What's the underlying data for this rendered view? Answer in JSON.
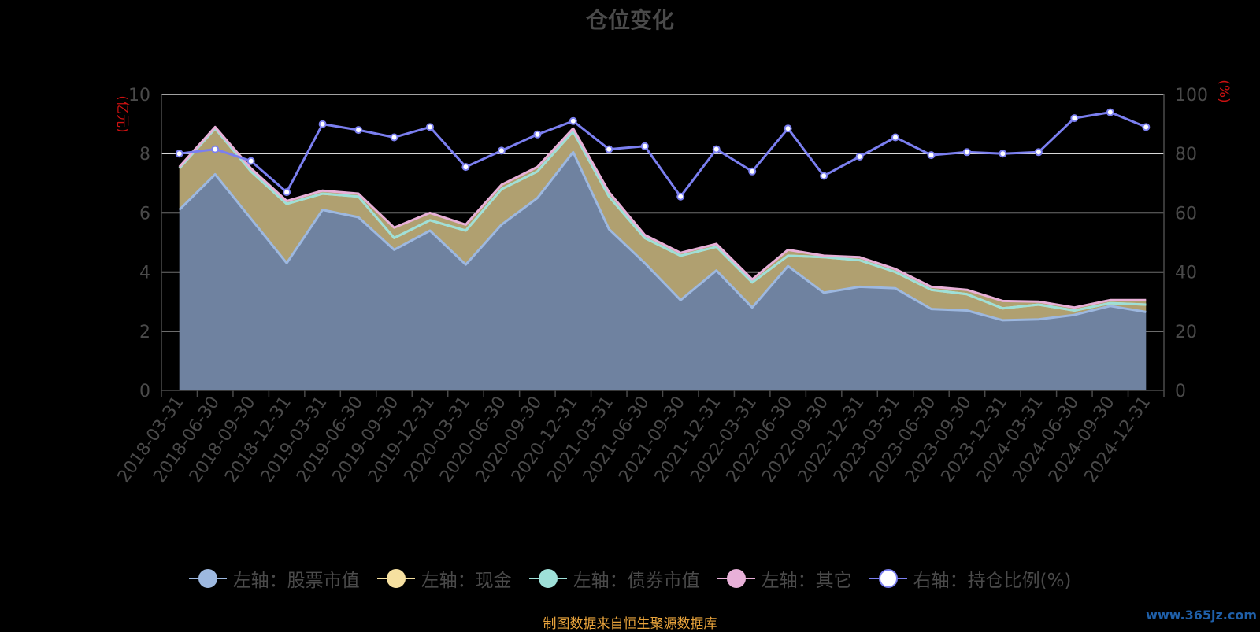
{
  "chart_data": {
    "type": "area",
    "title": "仓位变化",
    "left_axis_unit": "(亿元)",
    "right_axis_unit": "(%)",
    "left_ylim": [
      0,
      10
    ],
    "right_ylim": [
      0,
      100
    ],
    "left_ticks": [
      "0",
      "2",
      "4",
      "6",
      "8",
      "10"
    ],
    "right_ticks": [
      "0",
      "20",
      "40",
      "60",
      "80",
      "100"
    ],
    "grid": true,
    "legend_position": "bottom",
    "categories": [
      "2018-03-31",
      "2018-06-30",
      "2018-09-30",
      "2018-12-31",
      "2019-03-31",
      "2019-06-30",
      "2019-09-30",
      "2019-12-31",
      "2020-03-31",
      "2020-06-30",
      "2020-09-30",
      "2020-12-31",
      "2021-03-31",
      "2021-06-30",
      "2021-09-30",
      "2021-12-31",
      "2022-03-31",
      "2022-06-30",
      "2022-09-30",
      "2022-12-31",
      "2023-03-31",
      "2023-06-30",
      "2023-09-30",
      "2023-12-31",
      "2024-03-31",
      "2024-06-30",
      "2024-09-30",
      "2024-12-31"
    ],
    "series": [
      {
        "name": "左轴：股票市值",
        "axis": "left",
        "kind": "stacked-area",
        "color": "#9db8e0",
        "values": [
          6.1,
          7.3,
          5.8,
          4.3,
          6.1,
          5.85,
          4.75,
          5.4,
          4.25,
          5.6,
          6.5,
          8.05,
          5.45,
          4.3,
          3.05,
          4.05,
          2.8,
          4.2,
          3.3,
          3.5,
          3.45,
          2.75,
          2.7,
          2.37,
          2.4,
          2.55,
          2.85,
          2.65
        ]
      },
      {
        "name": "左轴：现金",
        "axis": "left",
        "kind": "stacked-area",
        "color": "#f6e0a0",
        "values": [
          1.4,
          1.55,
          1.6,
          2.0,
          0.55,
          0.7,
          0.4,
          0.35,
          1.15,
          1.2,
          0.9,
          0.7,
          1.1,
          0.85,
          1.5,
          0.8,
          0.85,
          0.35,
          1.2,
          0.9,
          0.55,
          0.65,
          0.55,
          0.4,
          0.5,
          0.15,
          0.1,
          0.25
        ]
      },
      {
        "name": "左轴：债券市值",
        "axis": "left",
        "kind": "stacked-area",
        "color": "#9ee0d8",
        "values": [
          0,
          0,
          0,
          0,
          0,
          0,
          0,
          0,
          0,
          0,
          0,
          0,
          0,
          0,
          0,
          0,
          0,
          0,
          0,
          0,
          0,
          0,
          0,
          0,
          0,
          0,
          0,
          0
        ]
      },
      {
        "name": "左轴：其它",
        "axis": "left",
        "kind": "stacked-area",
        "color": "#e8b0d8",
        "values": [
          0.05,
          0.05,
          0.1,
          0.1,
          0.1,
          0.1,
          0.35,
          0.25,
          0.2,
          0.15,
          0.15,
          0.1,
          0.15,
          0.1,
          0.1,
          0.1,
          0.1,
          0.2,
          0.05,
          0.1,
          0.1,
          0.1,
          0.15,
          0.25,
          0.1,
          0.1,
          0.1,
          0.15
        ]
      },
      {
        "name": "右轴：持仓比例(%)",
        "axis": "right",
        "kind": "line",
        "color": "#7b7ff0",
        "values": [
          80,
          81.5,
          77.5,
          67,
          90,
          88,
          85.5,
          89,
          75.5,
          81,
          86.5,
          91,
          81.5,
          82.5,
          65.5,
          81.5,
          74,
          88.5,
          72.5,
          79,
          85.5,
          79.5,
          80.5,
          80,
          80.5,
          92,
          94,
          89
        ]
      }
    ]
  },
  "footer": {
    "source": "制图数据来自恒生聚源数据库"
  },
  "watermark": {
    "text": "www.365jz.com"
  }
}
